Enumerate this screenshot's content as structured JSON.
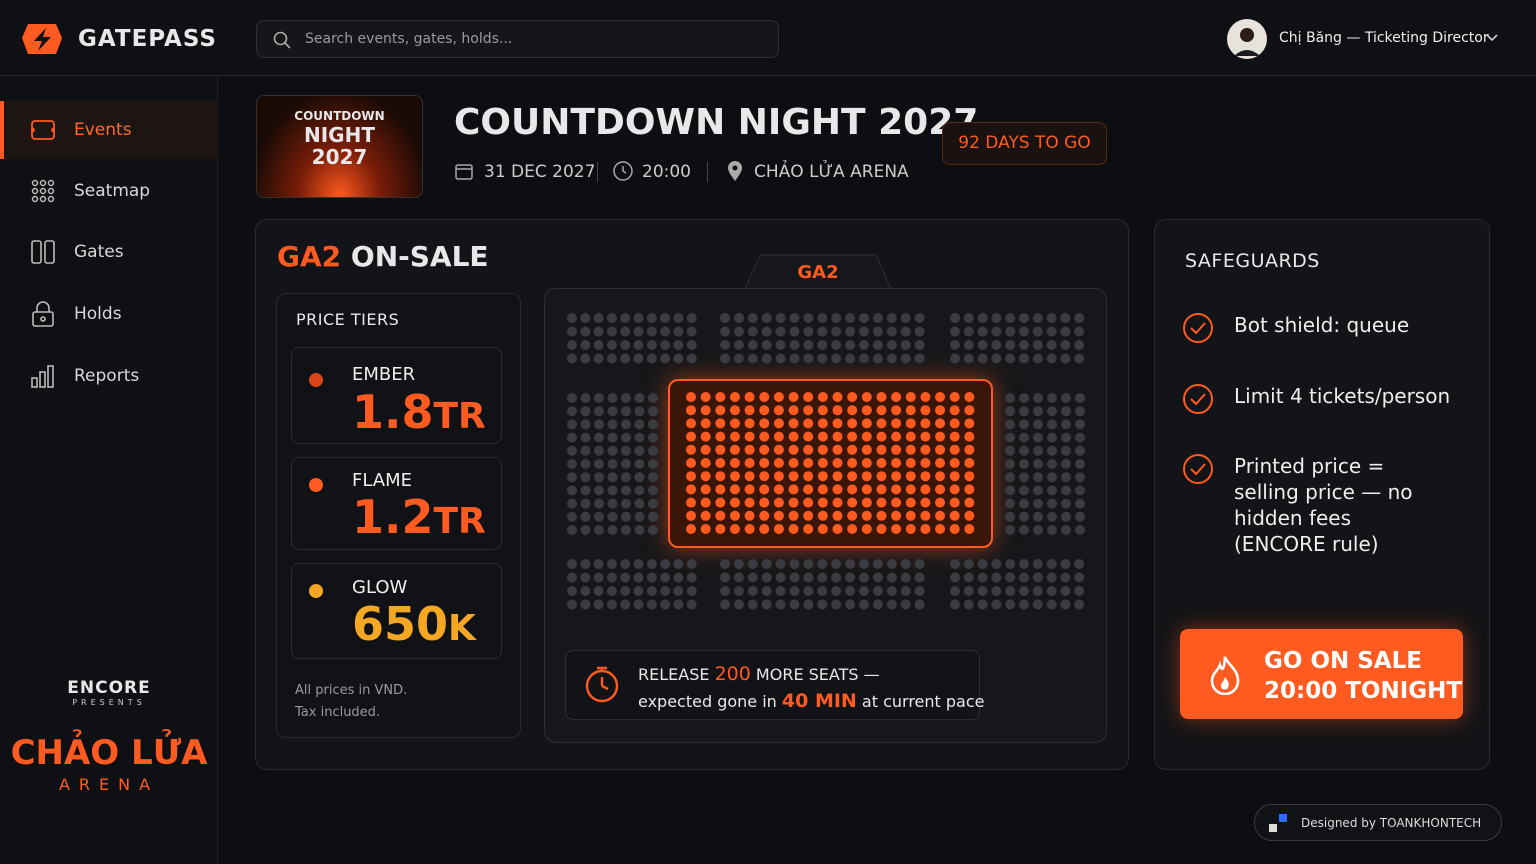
{
  "brand": "GATEPASS",
  "search_placeholder": "Search events, gates, holds...",
  "user": "Chị Băng — Ticketing Director",
  "nav": [
    "Events",
    "Seatmap",
    "Gates",
    "Holds",
    "Reports"
  ],
  "sidebar_footer": {
    "presenter": "ENCORE",
    "presents": "PRESENTS",
    "venue": "CHẢO LỬA",
    "venue_sub": "ARENA"
  },
  "event": {
    "poster": [
      "COUNTDOWN",
      "NIGHT",
      "2027"
    ],
    "title": "COUNTDOWN NIGHT 2027",
    "date": "31 DEC 2027",
    "time": "20:00",
    "venue": "CHẢO LỬA ARENA",
    "countdown": "92 DAYS TO GO"
  },
  "onsale": {
    "section": "GA2",
    "title": "ON-SALE",
    "map_label": "GA2"
  },
  "price_tiers": {
    "title": "PRICE TIERS",
    "tiers": [
      {
        "name": "EMBER",
        "amount": "1.8",
        "unit": "TR"
      },
      {
        "name": "FLAME",
        "amount": "1.2",
        "unit": "TR"
      },
      {
        "name": "GLOW",
        "amount": "650",
        "unit": "K"
      }
    ],
    "note": [
      "All prices in VND.",
      "Tax included."
    ]
  },
  "release": {
    "prefix": "RELEASE",
    "seats": "200",
    "suffix": "MORE SEATS —",
    "line2_prefix": "expected gone in",
    "time": "40 MIN",
    "line2_suffix": "at current pace"
  },
  "safeguards": {
    "title": "SAFEGUARDS",
    "items": [
      "Bot shield: queue",
      "Limit 4 tickets/person",
      "Printed price = selling price — no hidden fees (ENCORE rule)"
    ]
  },
  "cta": [
    "GO ON SALE",
    "20:00 TONIGHT"
  ],
  "credit": "Designed by TOANKHONTECH"
}
